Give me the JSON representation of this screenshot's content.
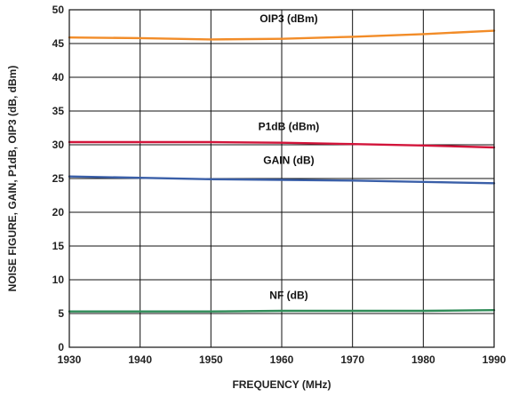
{
  "chart_data": {
    "type": "line",
    "title": "",
    "xlabel": "FREQUENCY (MHz)",
    "ylabel": "NOISE FIGURE, GAIN, P1dB, OIP3 (dB, dBm)",
    "xlim": [
      1930,
      1990
    ],
    "ylim": [
      0,
      50
    ],
    "x_ticks": [
      1930,
      1940,
      1950,
      1960,
      1970,
      1980,
      1990
    ],
    "y_ticks": [
      0,
      5,
      10,
      15,
      20,
      25,
      30,
      35,
      40,
      45,
      50
    ],
    "grid": true,
    "x": [
      1930,
      1940,
      1950,
      1960,
      1970,
      1980,
      1990
    ],
    "series": [
      {
        "name": "OIP3 (dBm)",
        "color": "#F28C28",
        "values": [
          45.9,
          45.8,
          45.6,
          45.7,
          46.0,
          46.4,
          46.9
        ]
      },
      {
        "name": "P1dB (dBm)",
        "color": "#D2143A",
        "values": [
          30.4,
          30.4,
          30.4,
          30.3,
          30.1,
          29.9,
          29.6
        ]
      },
      {
        "name": "GAIN (dB)",
        "color": "#3A5FA8",
        "values": [
          25.3,
          25.1,
          24.9,
          24.8,
          24.7,
          24.5,
          24.3
        ]
      },
      {
        "name": "NF (dB)",
        "color": "#2E8B57",
        "values": [
          5.3,
          5.3,
          5.3,
          5.4,
          5.4,
          5.4,
          5.5
        ]
      }
    ]
  }
}
